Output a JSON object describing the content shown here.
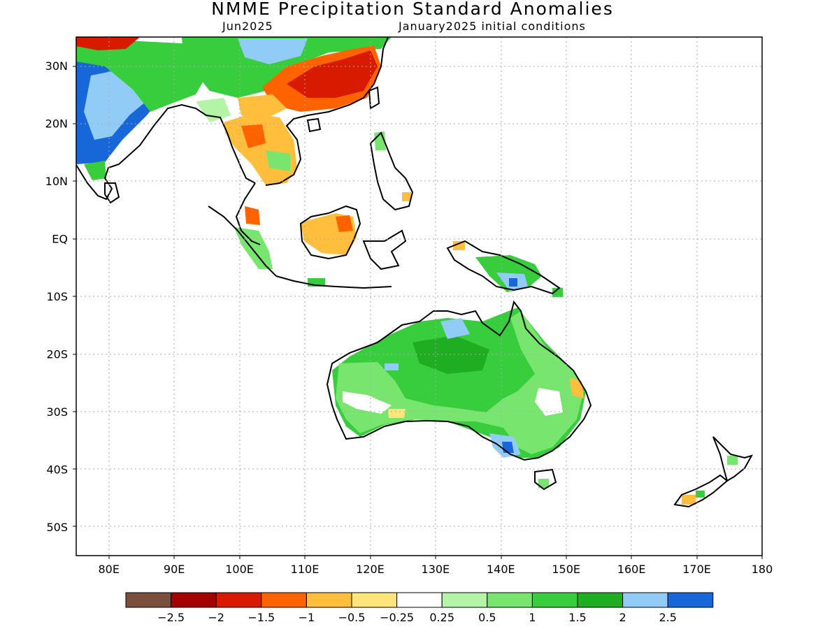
{
  "title": "NMME Precipitation Standard Anomalies",
  "subtitle_left": "Jun2025",
  "subtitle_right": "January2025 initial conditions",
  "axes": {
    "lon_labels": [
      "80E",
      "90E",
      "100E",
      "110E",
      "120E",
      "130E",
      "140E",
      "150E",
      "160E",
      "170E",
      "180"
    ],
    "lon_values": [
      80,
      90,
      100,
      110,
      120,
      130,
      140,
      150,
      160,
      170,
      180
    ],
    "lat_labels": [
      "30N",
      "20N",
      "10N",
      "EQ",
      "10S",
      "20S",
      "30S",
      "40S",
      "50S"
    ],
    "lat_values": [
      30,
      20,
      10,
      0,
      -10,
      -20,
      -30,
      -40,
      -50
    ],
    "lon_range": [
      75,
      180
    ],
    "lat_range": [
      -55,
      35
    ],
    "grid": "dotted"
  },
  "colorbar": {
    "colors": [
      "#7a4f3e",
      "#a50000",
      "#d81a00",
      "#ff6300",
      "#ffbe3b",
      "#ffe57a",
      "#ffffff",
      "#b4f5a5",
      "#78e66e",
      "#37cd3c",
      "#1fad22",
      "#91ccf7",
      "#1767d8"
    ],
    "labels": [
      "-2.5",
      "-2",
      "-1.5",
      "-1",
      "-0.5",
      "-0.25",
      "0.25",
      "0.5",
      "1",
      "1.5",
      "2",
      "2.5"
    ]
  }
}
